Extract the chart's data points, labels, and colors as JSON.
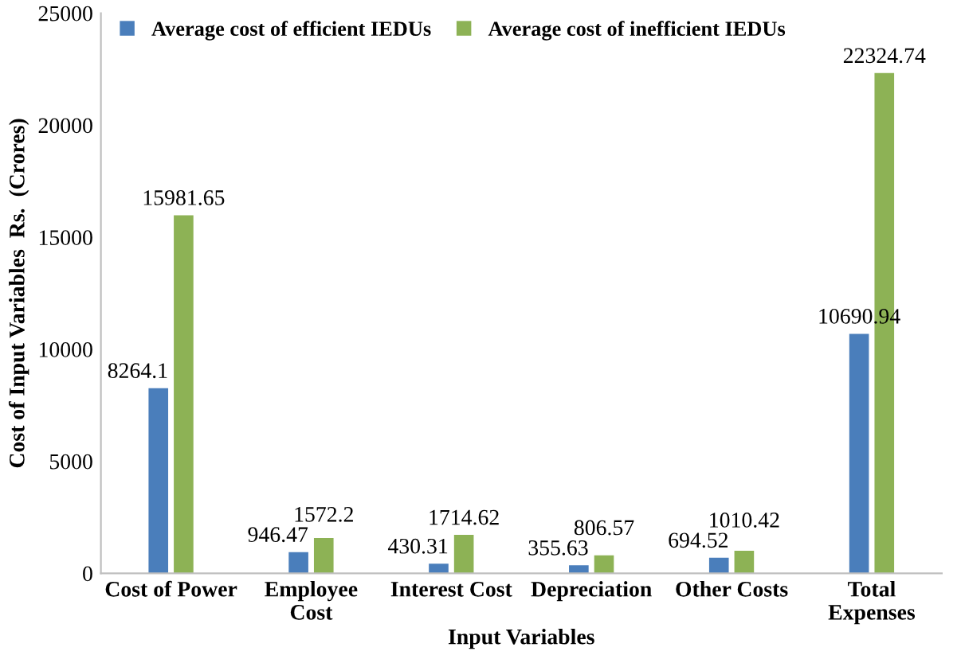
{
  "chart_data": {
    "type": "bar",
    "categories": [
      "Cost of Power",
      "Employee\nCost",
      "Interest Cost",
      "Depreciation",
      "Other Costs",
      "Total\nExpenses"
    ],
    "series": [
      {
        "name": "Average cost of efficient IEDUs",
        "color": "#4a7ebb",
        "values": [
          8264.1,
          946.47,
          430.31,
          355.63,
          694.52,
          10690.94
        ]
      },
      {
        "name": "Average cost of inefficient IEDUs",
        "color": "#8db255",
        "values": [
          15981.65,
          1572.2,
          1714.62,
          806.57,
          1010.42,
          22324.74
        ]
      }
    ],
    "xlabel": "Input Variables",
    "ylabel": "Cost of Input Variables  Rs.  (Crores)",
    "ylim": [
      0,
      25000
    ],
    "yticks": [
      0,
      5000,
      10000,
      15000,
      20000,
      25000
    ],
    "data_labels": true,
    "legend": "top left",
    "grid": false
  }
}
